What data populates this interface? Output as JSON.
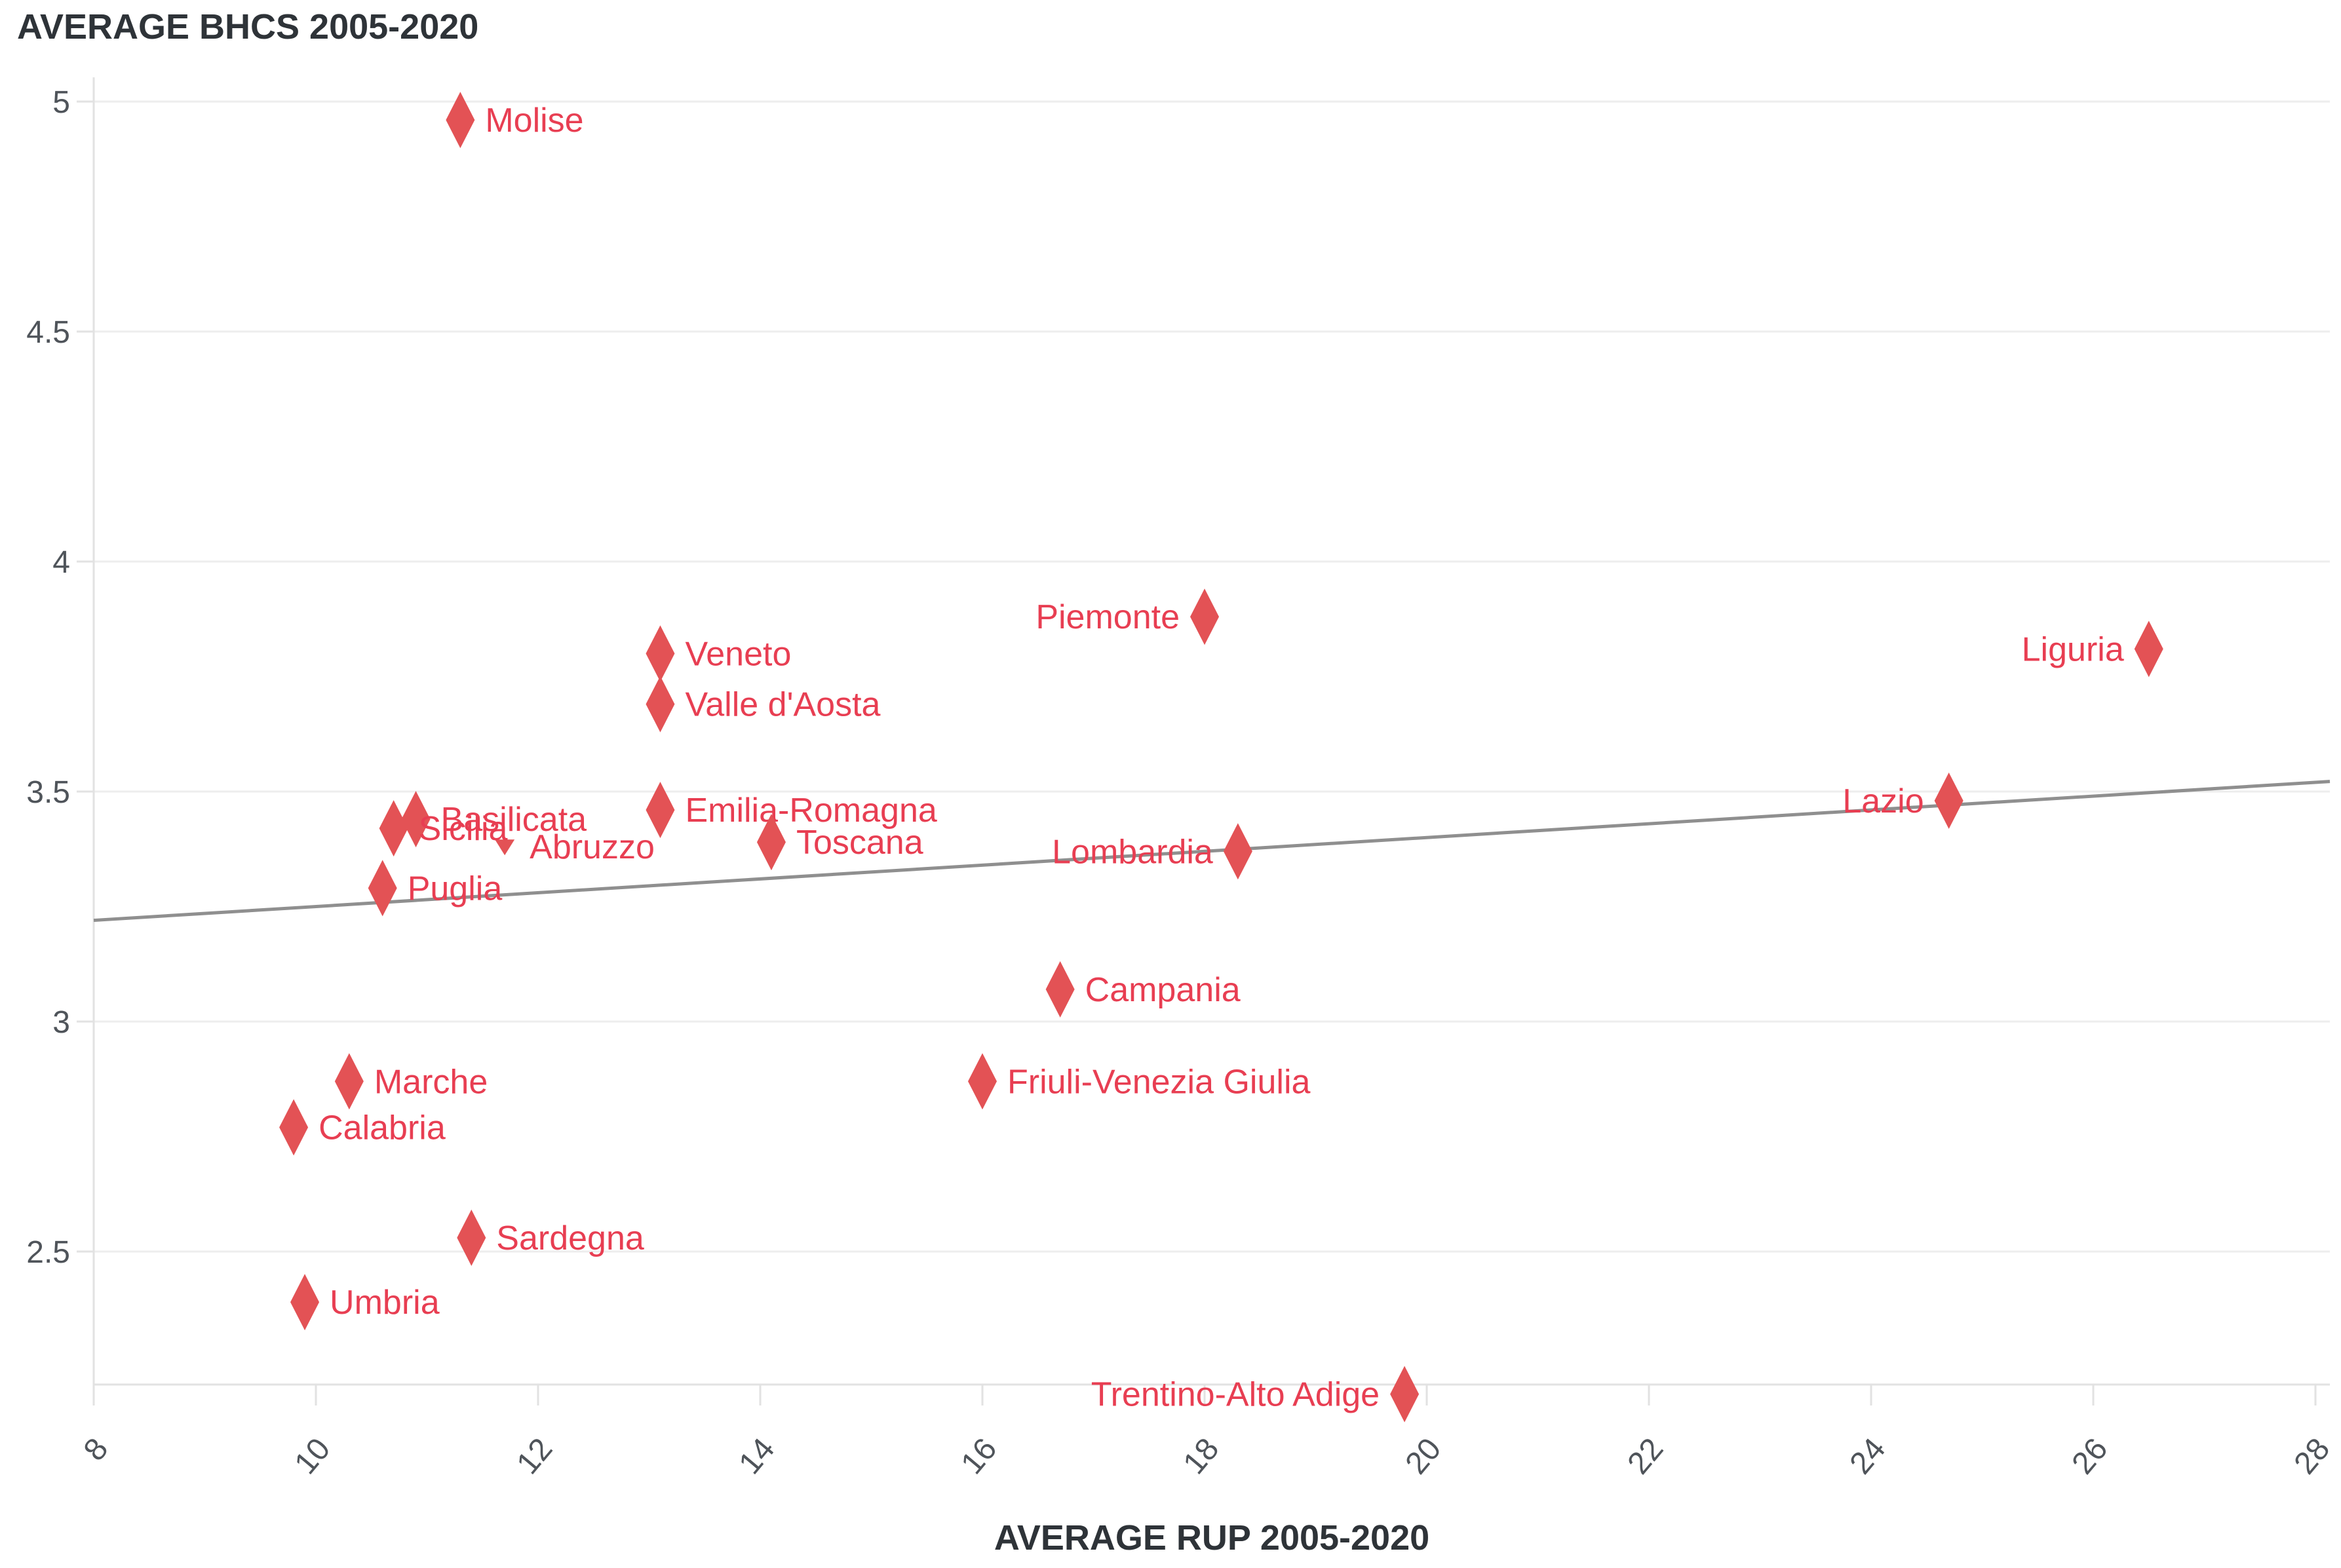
{
  "chart_data": {
    "type": "scatter",
    "title": "AVERAGE BHCS 2005-2020",
    "xlabel": "AVERAGE RUP 2005-2020",
    "ylabel": "AVERAGE BHCS 2005-2020",
    "xlim": [
      8,
      28
    ],
    "ylim": [
      2.21,
      5.06
    ],
    "x_ticks": [
      8,
      10,
      12,
      14,
      16,
      18,
      20,
      22,
      24,
      26,
      28
    ],
    "y_ticks": [
      5,
      4.5,
      4,
      3.5,
      3,
      2.5
    ],
    "grid": "horizontal-only",
    "legend": "none",
    "trend_line": {
      "x": [
        8,
        28
      ],
      "y": [
        3.22,
        3.52
      ]
    },
    "points": [
      {
        "label": "Molise",
        "x": 11.3,
        "y": 4.96,
        "side": "right",
        "marker": "diamond"
      },
      {
        "label": "Piemonte",
        "x": 18.0,
        "y": 3.88,
        "side": "left",
        "marker": "diamond"
      },
      {
        "label": "Liguria",
        "x": 26.5,
        "y": 3.81,
        "side": "left",
        "marker": "diamond"
      },
      {
        "label": "Veneto",
        "x": 13.1,
        "y": 3.8,
        "side": "right",
        "marker": "diamond"
      },
      {
        "label": "Valle d'Aosta",
        "x": 13.1,
        "y": 3.69,
        "side": "right",
        "marker": "diamond"
      },
      {
        "label": "Lazio",
        "x": 24.7,
        "y": 3.48,
        "side": "left",
        "marker": "diamond"
      },
      {
        "label": "Emilia-Romagna",
        "x": 13.1,
        "y": 3.46,
        "side": "right",
        "marker": "diamond"
      },
      {
        "label": "Toscana",
        "x": 14.1,
        "y": 3.39,
        "side": "right",
        "marker": "diamond"
      },
      {
        "label": "Abruzzo",
        "x": 11.7,
        "y": 3.38,
        "side": "right",
        "marker": "triangle-down"
      },
      {
        "label": "Basilicata",
        "x": 10.9,
        "y": 3.44,
        "side": "right",
        "marker": "diamond"
      },
      {
        "label": "Sicilia",
        "x": 10.7,
        "y": 3.42,
        "side": "right",
        "marker": "diamond"
      },
      {
        "label": "Lombardia",
        "x": 18.3,
        "y": 3.37,
        "side": "left",
        "marker": "diamond"
      },
      {
        "label": "Puglia",
        "x": 10.6,
        "y": 3.29,
        "side": "right",
        "marker": "diamond"
      },
      {
        "label": "Campania",
        "x": 16.7,
        "y": 3.07,
        "side": "right",
        "marker": "diamond"
      },
      {
        "label": "Friuli-Venezia Giulia",
        "x": 16.0,
        "y": 2.87,
        "side": "right",
        "marker": "diamond"
      },
      {
        "label": "Marche",
        "x": 10.3,
        "y": 2.87,
        "side": "right",
        "marker": "diamond"
      },
      {
        "label": "Calabria",
        "x": 9.8,
        "y": 2.77,
        "side": "right",
        "marker": "diamond"
      },
      {
        "label": "Sardegna",
        "x": 11.4,
        "y": 2.53,
        "side": "right",
        "marker": "diamond"
      },
      {
        "label": "Umbria",
        "x": 9.9,
        "y": 2.39,
        "side": "right",
        "marker": "diamond"
      },
      {
        "label": "Trentino-Alto Adige",
        "x": 19.8,
        "y": 2.19,
        "side": "left",
        "marker": "diamond"
      }
    ],
    "colors": {
      "marker": "#e35255",
      "point_label": "#e83e52",
      "trend": "#8f8f8f",
      "grid": "#ededed",
      "axis": "#e2e2e2",
      "tick_text": "#4f545a",
      "title_text": "#2e3338",
      "background": "#ffffff"
    }
  }
}
